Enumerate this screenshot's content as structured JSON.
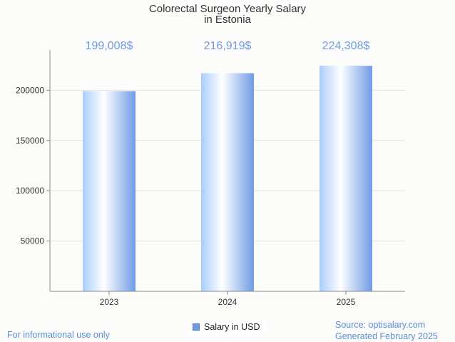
{
  "chart_data": {
    "type": "bar",
    "title_lines": [
      "Colorectal Surgeon Yearly Salary",
      "in Estonia"
    ],
    "categories": [
      "2023",
      "2024",
      "2025"
    ],
    "series": [
      {
        "name": "Salary in USD",
        "values": [
          199008,
          216919,
          224308
        ]
      }
    ],
    "data_labels": [
      "199,008$",
      "216,919$",
      "224,308$"
    ],
    "y_ticks": [
      50000,
      100000,
      150000,
      200000
    ],
    "ylim": [
      0,
      240000
    ],
    "grid": true,
    "legend_position": "bottom-center",
    "xlabel": "",
    "ylabel": ""
  },
  "footer": {
    "disclaimer": "For informational use only",
    "source": "Source: optisalary.com",
    "generated": "Generated February 2025"
  },
  "colors": {
    "bar_edge": "#6f9be6",
    "bar_center": "#ffffff",
    "bar_light": "#a9cdfb",
    "label": "#6f9bdf",
    "grid": "#e2e2e2",
    "axis": "#888888"
  }
}
